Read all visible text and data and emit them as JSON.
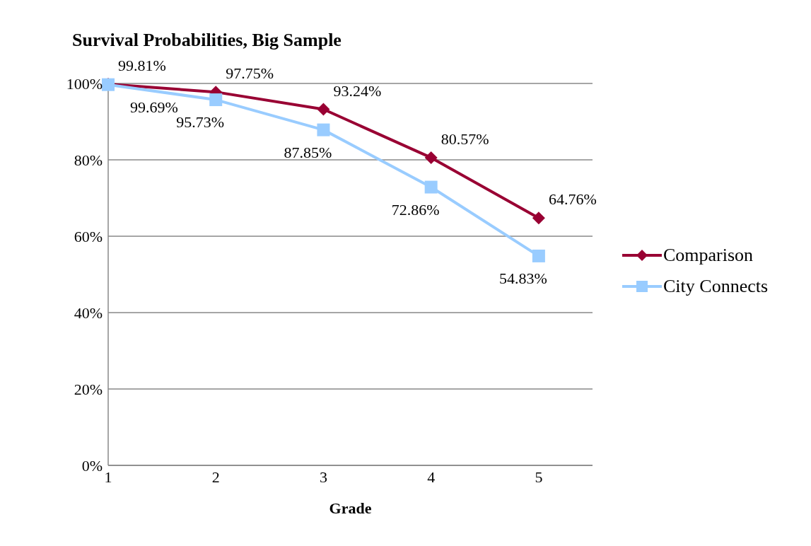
{
  "chart_data": {
    "type": "line",
    "title": "Survival Probabilities, Big Sample",
    "xlabel": "Grade",
    "x": [
      1,
      2,
      3,
      4,
      5
    ],
    "xlim": [
      1,
      5.5
    ],
    "xticks": [
      1,
      2,
      3,
      4,
      5
    ],
    "ylim": [
      0,
      100
    ],
    "yticks": [
      {
        "value": 0,
        "label": "0%"
      },
      {
        "value": 20,
        "label": "20%"
      },
      {
        "value": 40,
        "label": "40%"
      },
      {
        "value": 60,
        "label": "60%"
      },
      {
        "value": 80,
        "label": "80%"
      },
      {
        "value": 100,
        "label": "100%"
      }
    ],
    "grid": "y",
    "legend": "right",
    "line_style": "solid",
    "series": [
      {
        "name": "Comparison",
        "color": "#990033",
        "marker": "diamond",
        "values": [
          99.81,
          97.75,
          93.24,
          80.57,
          64.76
        ],
        "value_labels": [
          "99.81%",
          "97.75%",
          "93.24%",
          "80.57%",
          "64.76%"
        ]
      },
      {
        "name": "City Connects",
        "color": "#99ccff",
        "marker": "square",
        "values": [
          99.69,
          95.73,
          87.85,
          72.86,
          54.83
        ],
        "value_labels": [
          "99.69%",
          "95.73%",
          "87.85%",
          "72.86%",
          "54.83%"
        ]
      }
    ]
  }
}
